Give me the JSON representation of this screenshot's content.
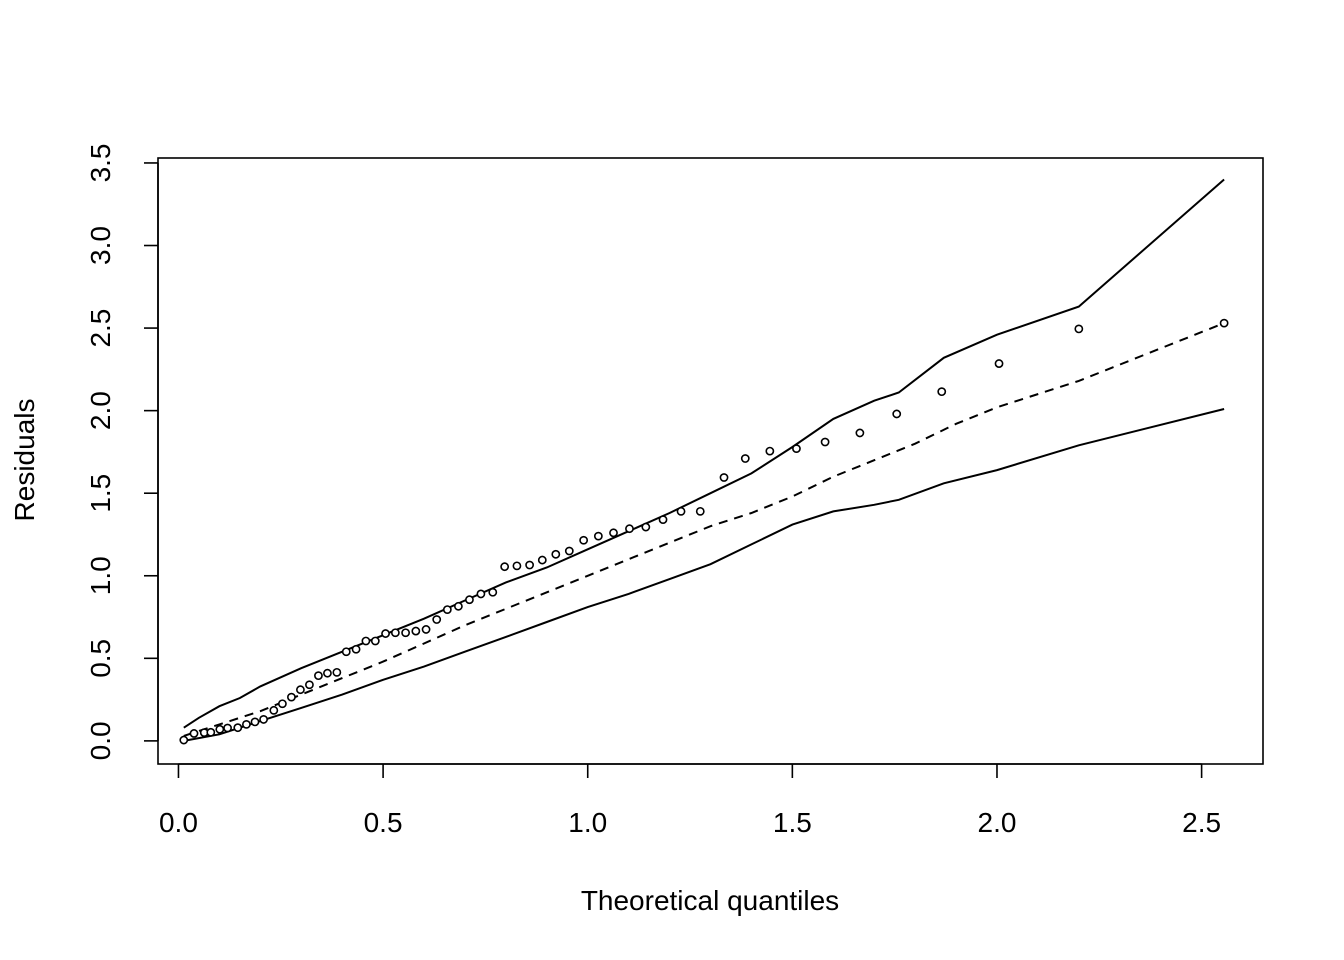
{
  "chart_data": {
    "type": "scatter",
    "title": "",
    "xlabel": "Theoretical quantiles",
    "ylabel": "Residuals",
    "xlim": [
      -0.05,
      2.65
    ],
    "ylim": [
      -0.14,
      3.53
    ],
    "x_ticks": [
      0.0,
      0.5,
      1.0,
      1.5,
      2.0,
      2.5
    ],
    "x_tick_labels": [
      "0.0",
      "0.5",
      "1.0",
      "1.5",
      "2.0",
      "2.5"
    ],
    "y_ticks": [
      0.0,
      0.5,
      1.0,
      1.5,
      2.0,
      2.5,
      3.0,
      3.5
    ],
    "y_tick_labels": [
      "0.0",
      "0.5",
      "1.0",
      "1.5",
      "2.0",
      "2.5",
      "3.0",
      "3.5"
    ],
    "grid": false,
    "legend": "none",
    "points": {
      "x": [
        0.013,
        0.038,
        0.063,
        0.079,
        0.101,
        0.12,
        0.145,
        0.166,
        0.187,
        0.208,
        0.233,
        0.254,
        0.276,
        0.298,
        0.32,
        0.342,
        0.364,
        0.387,
        0.41,
        0.434,
        0.458,
        0.481,
        0.506,
        0.53,
        0.555,
        0.58,
        0.605,
        0.631,
        0.657,
        0.684,
        0.711,
        0.739,
        0.768,
        0.797,
        0.827,
        0.858,
        0.889,
        0.922,
        0.955,
        0.99,
        1.026,
        1.063,
        1.102,
        1.142,
        1.184,
        1.228,
        1.275,
        1.333,
        1.385,
        1.445,
        1.51,
        1.58,
        1.665,
        1.755,
        1.865,
        2.005,
        2.2,
        2.555
      ],
      "y": [
        0.005,
        0.045,
        0.05,
        0.052,
        0.07,
        0.078,
        0.08,
        0.1,
        0.115,
        0.13,
        0.185,
        0.225,
        0.265,
        0.31,
        0.34,
        0.395,
        0.41,
        0.415,
        0.54,
        0.555,
        0.605,
        0.605,
        0.65,
        0.655,
        0.655,
        0.665,
        0.675,
        0.735,
        0.795,
        0.815,
        0.855,
        0.89,
        0.9,
        1.055,
        1.06,
        1.065,
        1.095,
        1.13,
        1.15,
        1.215,
        1.24,
        1.26,
        1.285,
        1.295,
        1.34,
        1.39,
        1.39,
        1.595,
        1.71,
        1.755,
        1.77,
        1.81,
        1.865,
        1.98,
        2.115,
        2.285,
        2.495,
        2.53
      ]
    },
    "upper_band": {
      "x": [
        0.013,
        0.05,
        0.1,
        0.15,
        0.2,
        0.3,
        0.4,
        0.5,
        0.6,
        0.7,
        0.8,
        0.9,
        1.0,
        1.1,
        1.2,
        1.3,
        1.4,
        1.5,
        1.6,
        1.7,
        1.76,
        1.87,
        2.0,
        2.2,
        2.555
      ],
      "y": [
        0.08,
        0.14,
        0.21,
        0.26,
        0.33,
        0.44,
        0.54,
        0.64,
        0.74,
        0.85,
        0.96,
        1.05,
        1.16,
        1.27,
        1.38,
        1.5,
        1.62,
        1.78,
        1.95,
        2.06,
        2.11,
        2.32,
        2.46,
        2.63,
        3.4
      ]
    },
    "median_line": {
      "x": [
        0.013,
        0.1,
        0.2,
        0.3,
        0.4,
        0.5,
        0.6,
        0.7,
        0.8,
        0.9,
        1.0,
        1.1,
        1.2,
        1.3,
        1.4,
        1.5,
        1.6,
        1.7,
        1.8,
        1.9,
        2.0,
        2.2,
        2.555
      ],
      "y": [
        0.03,
        0.1,
        0.18,
        0.28,
        0.38,
        0.48,
        0.59,
        0.7,
        0.8,
        0.9,
        1.0,
        1.1,
        1.2,
        1.3,
        1.38,
        1.48,
        1.6,
        1.7,
        1.8,
        1.92,
        2.02,
        2.18,
        2.53
      ]
    },
    "lower_band": {
      "x": [
        0.013,
        0.1,
        0.2,
        0.3,
        0.4,
        0.5,
        0.6,
        0.7,
        0.8,
        0.9,
        1.0,
        1.1,
        1.2,
        1.3,
        1.4,
        1.5,
        1.6,
        1.7,
        1.76,
        1.87,
        2.0,
        2.2,
        2.555
      ],
      "y": [
        0.0,
        0.04,
        0.12,
        0.2,
        0.28,
        0.37,
        0.45,
        0.54,
        0.63,
        0.72,
        0.81,
        0.89,
        0.98,
        1.07,
        1.19,
        1.31,
        1.39,
        1.43,
        1.46,
        1.56,
        1.64,
        1.79,
        2.01
      ]
    }
  }
}
